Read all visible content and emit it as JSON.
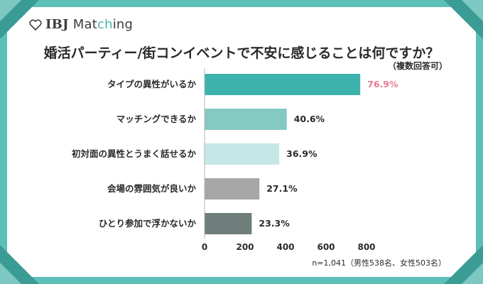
{
  "logo": {
    "ibj": "IBJ",
    "match": "Mat",
    "ch": "ch",
    "ing": "ing"
  },
  "chart_data": {
    "type": "bar",
    "orientation": "horizontal",
    "title": "婚活パーティー/街コンイベントで不安に感じることは何ですか？",
    "subtitle": "（複数回答可）",
    "categories": [
      "タイプの異性がいるか",
      "マッチングできるか",
      "初対面の異性とうまく話せるか",
      "会場の雰囲気が良いか",
      "ひとり参加で浮かないか"
    ],
    "values": [
      76.9,
      40.6,
      36.9,
      27.1,
      23.3
    ],
    "value_labels": [
      "76.9%",
      "40.6%",
      "36.9%",
      "27.1%",
      "23.3%"
    ],
    "bar_colors": [
      "#3bb3ac",
      "#85c9c3",
      "#c5e8e6",
      "#a6a6a6",
      "#6e7f7b"
    ],
    "value_label_colors": [
      "#e87a90",
      "#2a2a2a",
      "#2a2a2a",
      "#2a2a2a",
      "#2a2a2a"
    ],
    "xlim": [
      0,
      800
    ],
    "x_ticks": [
      0,
      200,
      400,
      600,
      800
    ],
    "grid": false,
    "note": "n=1,041（男性538名、女性503名）"
  },
  "colors": {
    "frame": "#5cbfb8",
    "corner_dark": "#3a9c95",
    "corner_light": "#8fd3ce"
  }
}
